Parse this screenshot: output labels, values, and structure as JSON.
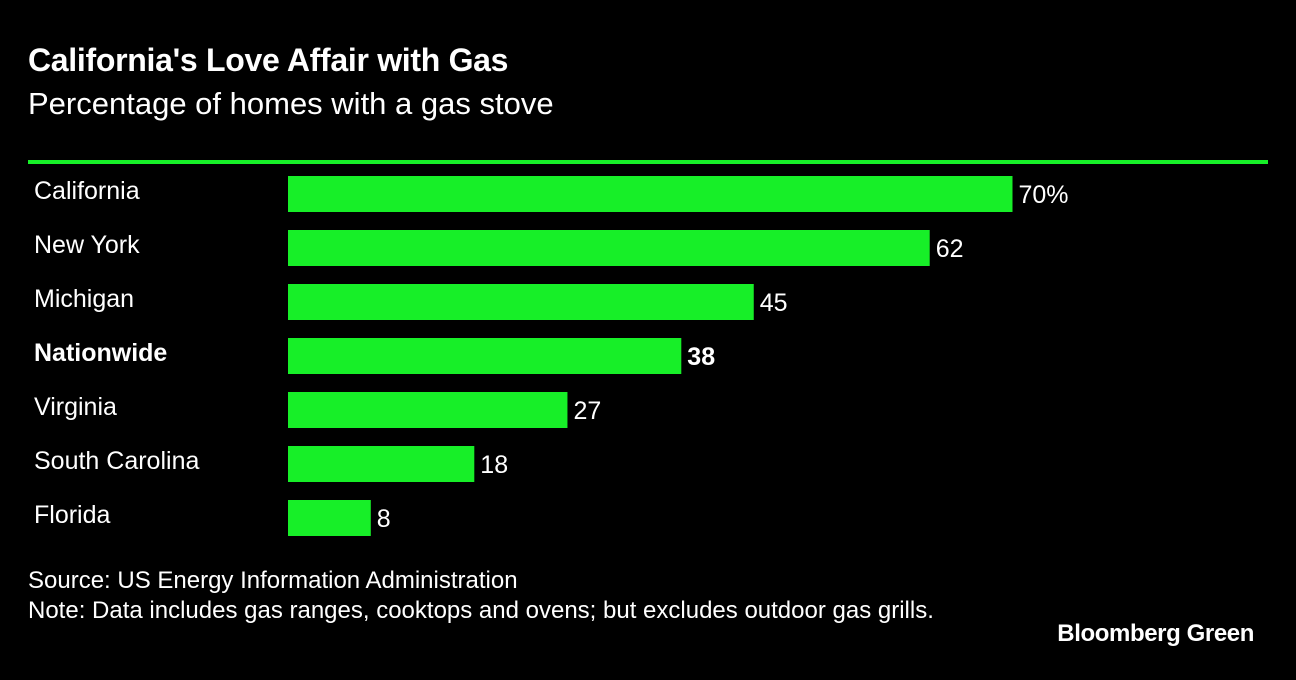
{
  "colors": {
    "background": "#000000",
    "bar": "#17ef28",
    "rule": "#17ef28",
    "text": "#ffffff"
  },
  "chart_data": {
    "type": "bar",
    "orientation": "horizontal",
    "title": "California's Love Affair with Gas",
    "subtitle": "Percentage of homes with a gas stove",
    "categories": [
      "California",
      "New York",
      "Michigan",
      "Nationwide",
      "Virginia",
      "South Carolina",
      "Florida"
    ],
    "values": [
      70,
      62,
      45,
      38,
      27,
      18,
      8
    ],
    "value_labels": [
      "70%",
      "62",
      "45",
      "38",
      "27",
      "18",
      "8"
    ],
    "highlight": [
      "Nationwide"
    ],
    "xlim": [
      0,
      100
    ],
    "grid": false,
    "legend": "none",
    "unit": "%"
  },
  "footer": {
    "source": "Source: US Energy Information Administration",
    "note": "Note: Data includes gas ranges, cooktops and ovens; but excludes outdoor gas grills."
  },
  "brand": "Bloomberg Green"
}
